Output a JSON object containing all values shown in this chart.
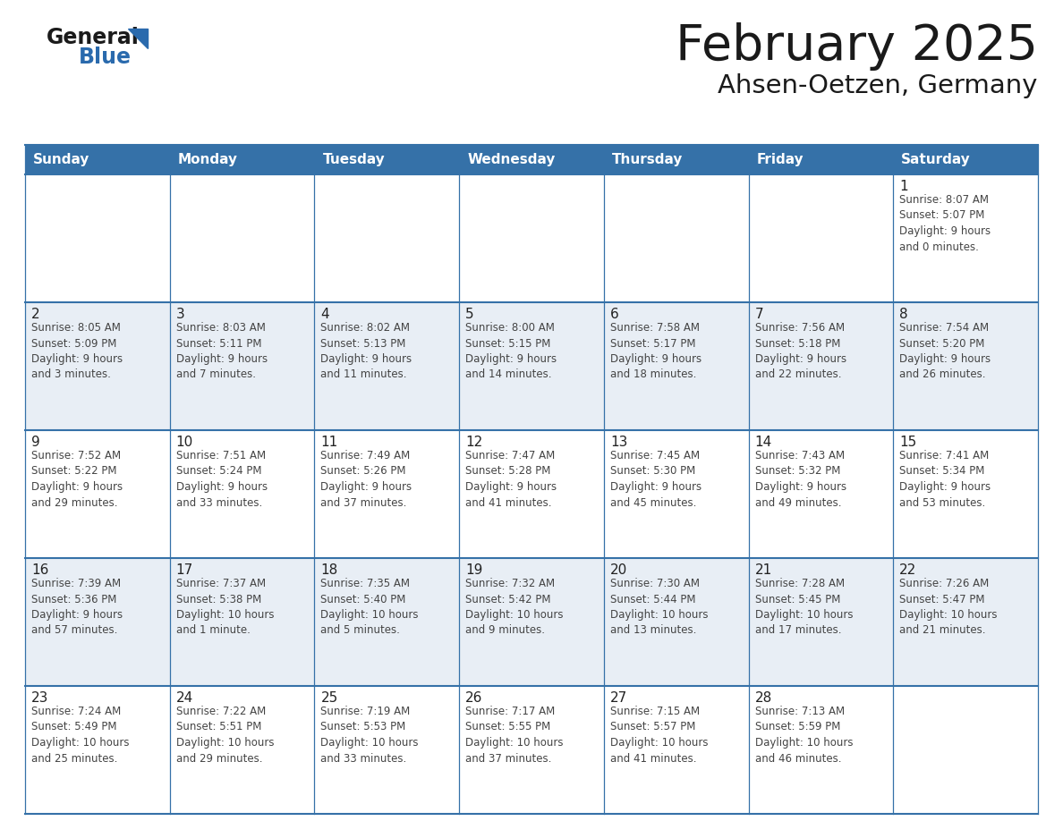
{
  "title": "February 2025",
  "subtitle": "Ahsen-Oetzen, Germany",
  "header_bg_color": "#3571a8",
  "header_text_color": "#ffffff",
  "cell_bg_even": "#ffffff",
  "cell_bg_odd": "#e8eef5",
  "grid_line_color": "#3571a8",
  "title_color": "#1a1a1a",
  "subtitle_color": "#1a1a1a",
  "day_number_color": "#222222",
  "cell_text_color": "#444444",
  "days_of_week": [
    "Sunday",
    "Monday",
    "Tuesday",
    "Wednesday",
    "Thursday",
    "Friday",
    "Saturday"
  ],
  "weeks": [
    [
      {
        "day": "",
        "info": ""
      },
      {
        "day": "",
        "info": ""
      },
      {
        "day": "",
        "info": ""
      },
      {
        "day": "",
        "info": ""
      },
      {
        "day": "",
        "info": ""
      },
      {
        "day": "",
        "info": ""
      },
      {
        "day": "1",
        "info": "Sunrise: 8:07 AM\nSunset: 5:07 PM\nDaylight: 9 hours\nand 0 minutes."
      }
    ],
    [
      {
        "day": "2",
        "info": "Sunrise: 8:05 AM\nSunset: 5:09 PM\nDaylight: 9 hours\nand 3 minutes."
      },
      {
        "day": "3",
        "info": "Sunrise: 8:03 AM\nSunset: 5:11 PM\nDaylight: 9 hours\nand 7 minutes."
      },
      {
        "day": "4",
        "info": "Sunrise: 8:02 AM\nSunset: 5:13 PM\nDaylight: 9 hours\nand 11 minutes."
      },
      {
        "day": "5",
        "info": "Sunrise: 8:00 AM\nSunset: 5:15 PM\nDaylight: 9 hours\nand 14 minutes."
      },
      {
        "day": "6",
        "info": "Sunrise: 7:58 AM\nSunset: 5:17 PM\nDaylight: 9 hours\nand 18 minutes."
      },
      {
        "day": "7",
        "info": "Sunrise: 7:56 AM\nSunset: 5:18 PM\nDaylight: 9 hours\nand 22 minutes."
      },
      {
        "day": "8",
        "info": "Sunrise: 7:54 AM\nSunset: 5:20 PM\nDaylight: 9 hours\nand 26 minutes."
      }
    ],
    [
      {
        "day": "9",
        "info": "Sunrise: 7:52 AM\nSunset: 5:22 PM\nDaylight: 9 hours\nand 29 minutes."
      },
      {
        "day": "10",
        "info": "Sunrise: 7:51 AM\nSunset: 5:24 PM\nDaylight: 9 hours\nand 33 minutes."
      },
      {
        "day": "11",
        "info": "Sunrise: 7:49 AM\nSunset: 5:26 PM\nDaylight: 9 hours\nand 37 minutes."
      },
      {
        "day": "12",
        "info": "Sunrise: 7:47 AM\nSunset: 5:28 PM\nDaylight: 9 hours\nand 41 minutes."
      },
      {
        "day": "13",
        "info": "Sunrise: 7:45 AM\nSunset: 5:30 PM\nDaylight: 9 hours\nand 45 minutes."
      },
      {
        "day": "14",
        "info": "Sunrise: 7:43 AM\nSunset: 5:32 PM\nDaylight: 9 hours\nand 49 minutes."
      },
      {
        "day": "15",
        "info": "Sunrise: 7:41 AM\nSunset: 5:34 PM\nDaylight: 9 hours\nand 53 minutes."
      }
    ],
    [
      {
        "day": "16",
        "info": "Sunrise: 7:39 AM\nSunset: 5:36 PM\nDaylight: 9 hours\nand 57 minutes."
      },
      {
        "day": "17",
        "info": "Sunrise: 7:37 AM\nSunset: 5:38 PM\nDaylight: 10 hours\nand 1 minute."
      },
      {
        "day": "18",
        "info": "Sunrise: 7:35 AM\nSunset: 5:40 PM\nDaylight: 10 hours\nand 5 minutes."
      },
      {
        "day": "19",
        "info": "Sunrise: 7:32 AM\nSunset: 5:42 PM\nDaylight: 10 hours\nand 9 minutes."
      },
      {
        "day": "20",
        "info": "Sunrise: 7:30 AM\nSunset: 5:44 PM\nDaylight: 10 hours\nand 13 minutes."
      },
      {
        "day": "21",
        "info": "Sunrise: 7:28 AM\nSunset: 5:45 PM\nDaylight: 10 hours\nand 17 minutes."
      },
      {
        "day": "22",
        "info": "Sunrise: 7:26 AM\nSunset: 5:47 PM\nDaylight: 10 hours\nand 21 minutes."
      }
    ],
    [
      {
        "day": "23",
        "info": "Sunrise: 7:24 AM\nSunset: 5:49 PM\nDaylight: 10 hours\nand 25 minutes."
      },
      {
        "day": "24",
        "info": "Sunrise: 7:22 AM\nSunset: 5:51 PM\nDaylight: 10 hours\nand 29 minutes."
      },
      {
        "day": "25",
        "info": "Sunrise: 7:19 AM\nSunset: 5:53 PM\nDaylight: 10 hours\nand 33 minutes."
      },
      {
        "day": "26",
        "info": "Sunrise: 7:17 AM\nSunset: 5:55 PM\nDaylight: 10 hours\nand 37 minutes."
      },
      {
        "day": "27",
        "info": "Sunrise: 7:15 AM\nSunset: 5:57 PM\nDaylight: 10 hours\nand 41 minutes."
      },
      {
        "day": "28",
        "info": "Sunrise: 7:13 AM\nSunset: 5:59 PM\nDaylight: 10 hours\nand 46 minutes."
      },
      {
        "day": "",
        "info": ""
      }
    ]
  ],
  "logo_general_color": "#1a1a1a",
  "logo_blue_color": "#2a6aad",
  "logo_triangle_color": "#2a6aad",
  "fig_width": 11.88,
  "fig_height": 9.18,
  "dpi": 100
}
